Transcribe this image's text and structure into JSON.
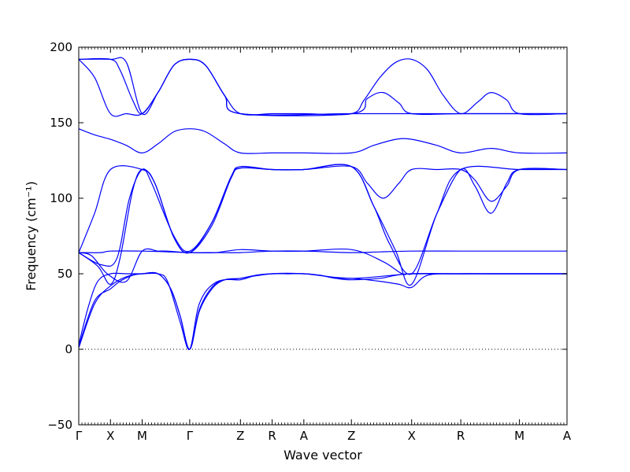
{
  "chart_data": {
    "type": "line",
    "title": "",
    "xlabel": "Wave vector",
    "ylabel": "Frequency (cm⁻¹)",
    "ylim": [
      -50,
      200
    ],
    "yticks": [
      -50,
      0,
      50,
      100,
      150,
      200
    ],
    "ytick_labels": [
      "−50",
      "0",
      "50",
      "100",
      "150",
      "200"
    ],
    "xlim": [
      0,
      15.4
    ],
    "xticks": [
      {
        "label": "Γ",
        "x": 0
      },
      {
        "label": "X",
        "x": 1
      },
      {
        "label": "M",
        "x": 2
      },
      {
        "label": "Γ",
        "x": 3.5
      },
      {
        "label": "Z",
        "x": 5.1
      },
      {
        "label": "R",
        "x": 6.1
      },
      {
        "label": "A",
        "x": 7.1
      },
      {
        "label": "Z",
        "x": 8.6
      },
      {
        "label": "X",
        "x": 10.5
      },
      {
        "label": "R",
        "x": 12.05
      },
      {
        "label": "M",
        "x": 13.9
      },
      {
        "label": "A",
        "x": 15.4
      }
    ],
    "zero_line": true,
    "line_color": "#0000ff",
    "series": [
      {
        "values": [
          [
            0,
            1
          ],
          [
            0.5,
            30
          ],
          [
            1,
            42
          ],
          [
            1.5,
            48
          ],
          [
            2,
            50
          ],
          [
            2.5,
            50
          ],
          [
            2.9,
            40
          ],
          [
            3.2,
            22
          ],
          [
            3.5,
            0
          ],
          [
            3.8,
            25
          ],
          [
            4.2,
            40
          ],
          [
            4.6,
            46
          ],
          [
            5.1,
            47
          ],
          [
            5.6,
            49
          ],
          [
            6.1,
            50
          ],
          [
            6.6,
            50
          ],
          [
            7.1,
            50
          ],
          [
            7.6,
            49
          ],
          [
            8.1,
            47
          ],
          [
            8.6,
            47
          ],
          [
            9.5,
            45
          ],
          [
            10.1,
            43
          ],
          [
            10.5,
            41
          ],
          [
            11,
            49
          ],
          [
            12,
            50
          ],
          [
            13,
            50
          ],
          [
            14,
            50
          ],
          [
            15.4,
            50
          ]
        ]
      },
      {
        "values": [
          [
            0,
            2
          ],
          [
            0.5,
            32
          ],
          [
            1,
            40
          ],
          [
            1.3,
            45
          ],
          [
            1.7,
            49
          ],
          [
            2,
            50
          ],
          [
            2.5,
            50
          ],
          [
            2.9,
            40
          ],
          [
            3.2,
            22
          ],
          [
            3.5,
            0
          ],
          [
            3.8,
            26
          ],
          [
            4.2,
            41
          ],
          [
            4.6,
            46
          ],
          [
            5.1,
            46
          ],
          [
            5.6,
            49
          ],
          [
            6.1,
            50
          ],
          [
            6.6,
            50
          ],
          [
            7.1,
            50
          ],
          [
            7.6,
            49
          ],
          [
            8.1,
            47
          ],
          [
            8.6,
            46
          ],
          [
            9.5,
            47
          ],
          [
            10,
            49
          ],
          [
            10.5,
            50
          ],
          [
            12,
            50
          ],
          [
            14,
            50
          ],
          [
            15.4,
            50
          ]
        ]
      },
      {
        "values": [
          [
            0,
            3
          ],
          [
            0.3,
            28
          ],
          [
            0.6,
            45
          ],
          [
            1,
            50
          ],
          [
            1.5,
            50
          ],
          [
            2,
            50
          ],
          [
            2.5,
            50
          ],
          [
            2.8,
            45
          ],
          [
            3.2,
            18
          ],
          [
            3.5,
            0
          ],
          [
            3.8,
            30
          ],
          [
            4.3,
            44
          ],
          [
            5.1,
            47
          ],
          [
            6.1,
            50
          ],
          [
            7.1,
            50
          ],
          [
            8.6,
            47
          ],
          [
            10.5,
            50
          ],
          [
            12,
            50
          ],
          [
            15.4,
            50
          ]
        ]
      },
      {
        "values": [
          [
            0,
            64
          ],
          [
            0.7,
            64
          ],
          [
            1,
            65
          ],
          [
            2,
            65
          ],
          [
            2.8,
            64.5
          ],
          [
            3.5,
            64
          ],
          [
            4.3,
            64
          ],
          [
            5.1,
            64
          ],
          [
            6.1,
            65
          ],
          [
            7.1,
            65
          ],
          [
            8.6,
            64
          ],
          [
            9.5,
            64.5
          ],
          [
            10.5,
            65
          ],
          [
            12.05,
            65
          ],
          [
            13.9,
            65
          ],
          [
            15.4,
            65
          ]
        ]
      },
      {
        "values": [
          [
            0,
            64
          ],
          [
            0.4,
            62
          ],
          [
            0.9,
            50
          ],
          [
            1.5,
            45
          ],
          [
            2,
            65
          ],
          [
            2.5,
            65
          ],
          [
            2.8,
            65
          ],
          [
            3.5,
            64
          ],
          [
            4.3,
            64
          ],
          [
            5.1,
            66
          ],
          [
            6.1,
            65
          ],
          [
            7.1,
            65
          ],
          [
            8.6,
            66
          ],
          [
            9.6,
            58
          ],
          [
            10.2,
            50
          ],
          [
            10.5,
            50
          ],
          [
            12.05,
            50
          ],
          [
            13.9,
            50
          ],
          [
            15.4,
            50
          ]
        ]
      },
      {
        "values": [
          [
            0,
            64
          ],
          [
            0.5,
            90
          ],
          [
            1,
            119
          ],
          [
            2,
            119
          ],
          [
            2.4,
            110
          ],
          [
            3,
            74
          ],
          [
            3.5,
            64
          ],
          [
            4.2,
            82
          ],
          [
            4.8,
            113
          ],
          [
            5.1,
            120
          ],
          [
            6.1,
            119
          ],
          [
            7.1,
            119
          ],
          [
            8.6,
            121
          ],
          [
            9.1,
            110
          ],
          [
            9.6,
            100
          ],
          [
            10.1,
            110
          ],
          [
            10.5,
            119
          ],
          [
            11.3,
            119
          ],
          [
            12.05,
            119
          ],
          [
            12.5,
            112
          ],
          [
            13,
            98
          ],
          [
            13.5,
            108
          ],
          [
            13.9,
            119
          ],
          [
            15.4,
            119
          ]
        ]
      },
      {
        "values": [
          [
            0,
            64
          ],
          [
            0.6,
            55
          ],
          [
            1,
            43
          ],
          [
            1.3,
            60
          ],
          [
            1.7,
            105
          ],
          [
            2,
            119
          ],
          [
            2.4,
            110
          ],
          [
            3,
            74
          ],
          [
            3.5,
            64
          ],
          [
            4.2,
            84
          ],
          [
            4.8,
            114
          ],
          [
            5.1,
            120
          ],
          [
            6.1,
            119
          ],
          [
            7.1,
            119
          ],
          [
            8.6,
            121
          ],
          [
            9.3,
            95
          ],
          [
            9.8,
            70
          ],
          [
            10.5,
            50
          ],
          [
            11.3,
            90
          ],
          [
            12.05,
            119
          ],
          [
            12.5,
            108
          ],
          [
            13,
            90
          ],
          [
            13.5,
            110
          ],
          [
            13.9,
            119
          ],
          [
            15.4,
            119
          ]
        ]
      },
      {
        "values": [
          [
            0,
            64
          ],
          [
            0.7,
            56
          ],
          [
            1.2,
            60
          ],
          [
            1.6,
            100
          ],
          [
            2,
            119
          ],
          [
            2.3,
            110
          ],
          [
            3,
            75
          ],
          [
            3.5,
            65
          ],
          [
            4.2,
            84
          ],
          [
            4.8,
            114
          ],
          [
            5.1,
            121
          ],
          [
            6.1,
            119
          ],
          [
            7.1,
            119
          ],
          [
            8.6,
            121
          ],
          [
            9.3,
            95
          ],
          [
            10,
            65
          ],
          [
            10.5,
            43
          ],
          [
            11.3,
            90
          ],
          [
            12.05,
            119
          ],
          [
            13.9,
            119
          ],
          [
            15.4,
            119
          ]
        ]
      },
      {
        "values": [
          [
            0,
            146
          ],
          [
            0.5,
            142
          ],
          [
            1,
            139
          ],
          [
            1.5,
            135
          ],
          [
            2,
            130
          ],
          [
            2.5,
            136
          ],
          [
            3,
            144
          ],
          [
            3.5,
            146
          ],
          [
            4,
            144
          ],
          [
            4.6,
            136
          ],
          [
            5.1,
            130
          ],
          [
            6.1,
            130
          ],
          [
            7.1,
            130
          ],
          [
            8.6,
            130
          ],
          [
            9.3,
            135
          ],
          [
            10,
            139
          ],
          [
            10.5,
            139
          ],
          [
            11.3,
            135
          ],
          [
            12.05,
            130
          ],
          [
            13,
            133
          ],
          [
            13.9,
            130
          ],
          [
            15.4,
            130
          ]
        ]
      },
      {
        "values": [
          [
            0,
            192
          ],
          [
            0.5,
            180
          ],
          [
            1,
            156
          ],
          [
            1.5,
            156
          ],
          [
            2,
            156
          ],
          [
            2.5,
            170
          ],
          [
            3,
            188
          ],
          [
            3.5,
            192
          ],
          [
            4,
            188
          ],
          [
            4.6,
            168
          ],
          [
            5.1,
            156
          ],
          [
            6.1,
            156
          ],
          [
            7.1,
            156
          ],
          [
            8.6,
            156
          ],
          [
            9,
            165
          ],
          [
            9.5,
            180
          ],
          [
            10,
            190
          ],
          [
            10.5,
            192
          ],
          [
            11,
            185
          ],
          [
            11.5,
            168
          ],
          [
            12.05,
            156
          ],
          [
            12.6,
            164
          ],
          [
            13,
            170
          ],
          [
            13.5,
            165
          ],
          [
            13.9,
            156
          ],
          [
            15.4,
            156
          ]
        ]
      },
      {
        "values": [
          [
            0,
            192
          ],
          [
            1,
            192
          ],
          [
            1.3,
            185
          ],
          [
            1.7,
            165
          ],
          [
            2,
            156
          ],
          [
            2.5,
            170
          ],
          [
            3,
            188
          ],
          [
            3.5,
            192
          ],
          [
            4,
            188
          ],
          [
            4.6,
            168
          ],
          [
            5.1,
            156
          ],
          [
            8.6,
            156
          ],
          [
            9.1,
            166
          ],
          [
            9.6,
            170
          ],
          [
            10.1,
            163
          ],
          [
            10.5,
            156
          ],
          [
            12.05,
            156
          ],
          [
            13.9,
            156
          ],
          [
            15.4,
            156
          ]
        ]
      },
      {
        "values": [
          [
            0,
            192
          ],
          [
            1,
            192
          ],
          [
            1.5,
            190
          ],
          [
            2,
            156
          ],
          [
            2.5,
            170
          ],
          [
            3,
            188
          ],
          [
            3.5,
            192
          ],
          [
            4,
            188
          ],
          [
            4.6,
            168
          ],
          [
            5.1,
            156
          ],
          [
            8.6,
            156
          ],
          [
            10.5,
            156
          ],
          [
            12.05,
            156
          ],
          [
            13.9,
            156
          ],
          [
            15.4,
            156
          ]
        ]
      }
    ]
  }
}
